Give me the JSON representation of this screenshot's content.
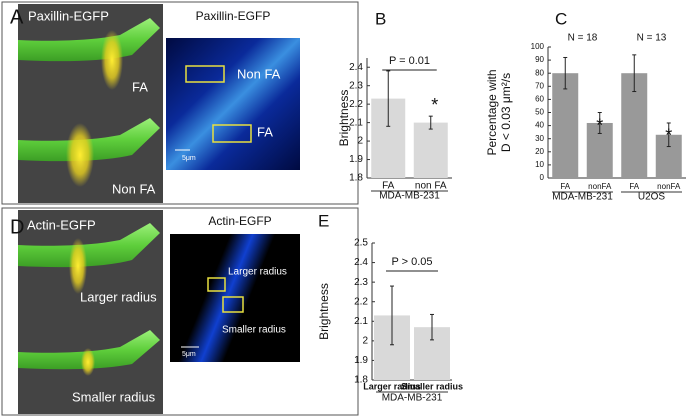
{
  "illustrations": [
    {
      "label": "A",
      "cell_title": "Paxillin-EGFP",
      "image_title": "Paxillin-EGFP",
      "cell_regions": [
        "FA",
        "Non FA"
      ],
      "image_regions": [
        "Non FA",
        "FA"
      ],
      "scale": "5μm"
    },
    {
      "label": "D",
      "cell_title": "Actin-EGFP",
      "image_title": "Actin-EGFP",
      "cell_regions": [
        "Larger radius",
        "Smaller radius"
      ],
      "image_regions": [
        "Larger radius",
        "Smaller radius"
      ],
      "scale": "5μm"
    }
  ],
  "chart_data": [
    {
      "type": "bar",
      "panel": "B",
      "ylabel": [
        "Brightness"
      ],
      "categories": [
        "FA",
        "non FA"
      ],
      "values": [
        2.23,
        2.1
      ],
      "errors": [
        0.15,
        0.035
      ],
      "color": "#d9d9d9",
      "ylim": [
        1.8,
        2.45
      ],
      "yticks": [
        1.8,
        1.9,
        2,
        2.1,
        2.2,
        2.3,
        2.4
      ],
      "group_labels": [
        "MDA-MB-231"
      ],
      "bracket": "P = 0.01",
      "annotations": [
        {
          "text": "*",
          "at": 1
        }
      ]
    },
    {
      "type": "bar",
      "panel": "C",
      "ylabel": [
        "Percentage with",
        "D < 0.03 μm²/s"
      ],
      "categories": [
        "FA",
        "nonFA",
        "FA",
        "nonFA"
      ],
      "values": [
        80,
        42,
        80,
        33
      ],
      "errors": [
        12,
        8,
        14,
        9
      ],
      "color": "#999999",
      "ylim": [
        0,
        100
      ],
      "yticks": [
        0,
        10,
        20,
        30,
        40,
        50,
        60,
        70,
        80,
        90,
        100
      ],
      "group_labels": [
        "MDA-MB-231",
        "U2OS"
      ],
      "group_notes": [
        "N = 18",
        "N = 13"
      ],
      "annotations": [
        {
          "text": "*",
          "at": 1
        },
        {
          "text": "*",
          "at": 3
        }
      ]
    },
    {
      "type": "bar",
      "panel": "E",
      "ylabel": [
        "Brightness"
      ],
      "categories": [
        "Larger radius",
        "Smaller radius"
      ],
      "values": [
        2.13,
        2.07
      ],
      "errors": [
        0.15,
        0.065
      ],
      "color": "#d9d9d9",
      "ylim": [
        1.8,
        2.5
      ],
      "yticks": [
        1.8,
        1.9,
        2,
        2.1,
        2.2,
        2.3,
        2.4,
        2.5
      ],
      "group_labels": [
        "MDA-MB-231"
      ],
      "bracket": "P > 0.05"
    }
  ]
}
